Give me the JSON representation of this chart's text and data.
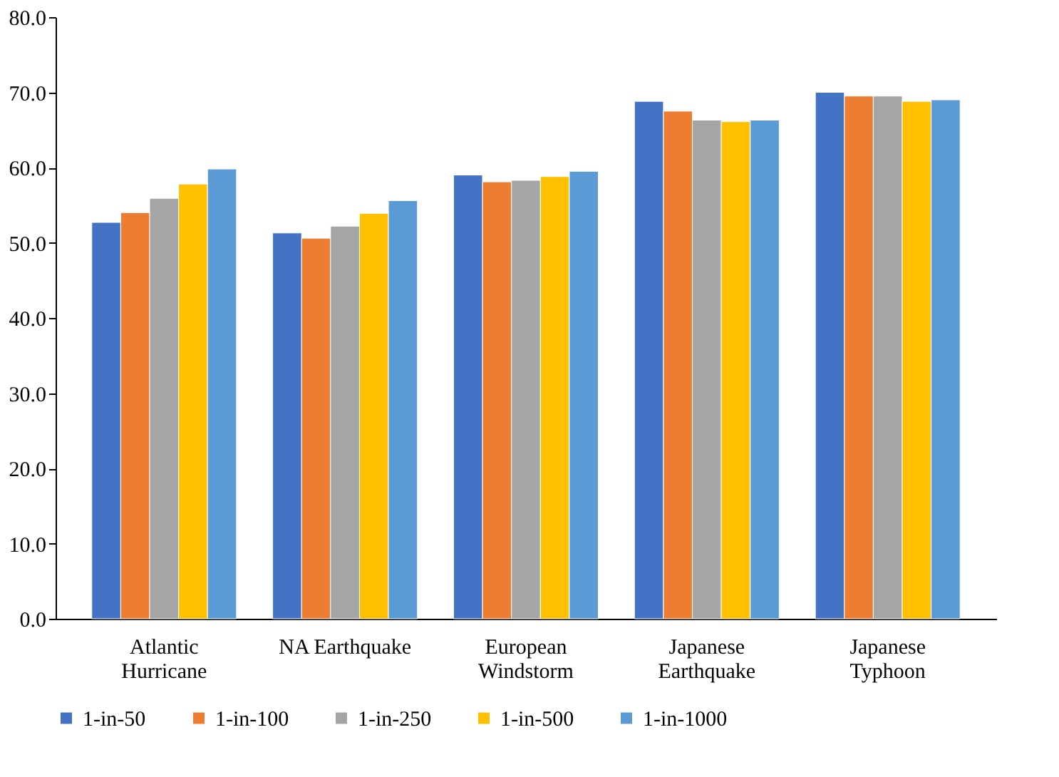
{
  "chart_data": {
    "type": "bar",
    "categories": [
      "Atlantic\nHurricane",
      "NA Earthquake",
      "European\nWindstorm",
      "Japanese\nEarthquake",
      "Japanese\nTyphoon"
    ],
    "series": [
      {
        "name": "1-in-50",
        "color": "#4472c4",
        "values": [
          52.7,
          51.3,
          59.0,
          68.8,
          70.0
        ]
      },
      {
        "name": "1-in-100",
        "color": "#ed7d31",
        "values": [
          54.0,
          50.6,
          58.1,
          67.5,
          69.5
        ]
      },
      {
        "name": "1-in-250",
        "color": "#a5a5a5",
        "values": [
          55.9,
          52.2,
          58.3,
          66.3,
          69.5
        ]
      },
      {
        "name": "1-in-500",
        "color": "#ffc000",
        "values": [
          57.8,
          53.9,
          58.8,
          66.1,
          68.8
        ]
      },
      {
        "name": "1-in-1000",
        "color": "#5b9bd5",
        "values": [
          59.8,
          55.6,
          59.5,
          66.3,
          69.0
        ]
      }
    ],
    "ylim": [
      0,
      80
    ],
    "yticks": [
      {
        "value": 0,
        "label": "0.0"
      },
      {
        "value": 10,
        "label": "10.0"
      },
      {
        "value": 20,
        "label": "20.0"
      },
      {
        "value": 30,
        "label": "30.0"
      },
      {
        "value": 40,
        "label": "40.0"
      },
      {
        "value": 50,
        "label": "50.0"
      },
      {
        "value": 60,
        "label": "60.0"
      },
      {
        "value": 70,
        "label": "70.0"
      },
      {
        "value": 80,
        "label": "80.0"
      }
    ],
    "grid": false,
    "legend": "bottom"
  }
}
